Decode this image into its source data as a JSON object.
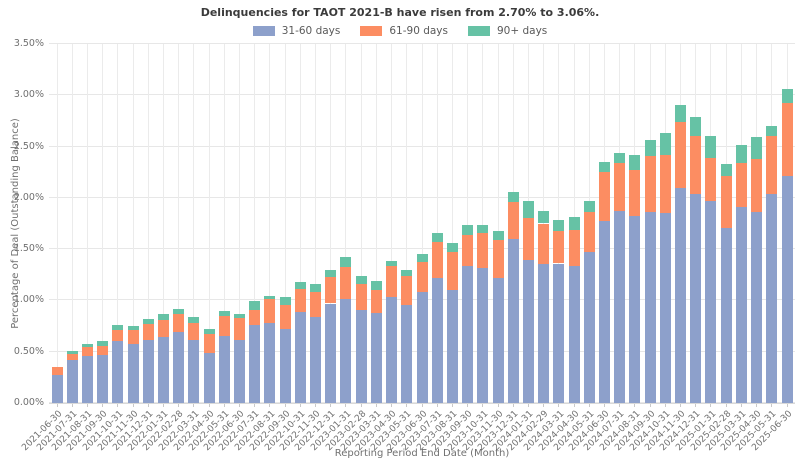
{
  "title": "Delinquencies for TAOT 2021-B have risen from 2.70% to 3.06%.",
  "legend": {
    "items": [
      {
        "label": "31-60 days",
        "color": "#8da0cb"
      },
      {
        "label": "61-90 days",
        "color": "#fc8d62"
      },
      {
        "label": "90+ days",
        "color": "#66c2a5"
      }
    ]
  },
  "axes": {
    "ylabel": "Percentage of Deal (Outstanding Balance)",
    "xlabel": "Reporting Period End Date (Month)",
    "yticks": [
      "0.00%",
      "0.50%",
      "1.00%",
      "1.50%",
      "2.00%",
      "2.50%",
      "3.00%",
      "3.50%"
    ]
  },
  "chart_data": {
    "type": "bar",
    "stacked": true,
    "title": "Delinquencies for TAOT 2021-B have risen from 2.70% to 3.06%.",
    "xlabel": "Reporting Period End Date (Month)",
    "ylabel": "Percentage of Deal (Outstanding Balance)",
    "ylim": [
      0,
      3.5
    ],
    "grid": true,
    "legend_position": "top",
    "unit": "percent",
    "categories": [
      "2021-06-30",
      "2021-07-31",
      "2021-08-31",
      "2021-09-30",
      "2021-10-31",
      "2021-11-30",
      "2021-12-31",
      "2022-01-31",
      "2022-02-28",
      "2022-03-31",
      "2022-04-30",
      "2022-05-31",
      "2022-06-30",
      "2022-07-31",
      "2022-08-31",
      "2022-09-30",
      "2022-10-31",
      "2022-11-30",
      "2022-12-31",
      "2023-01-31",
      "2023-02-28",
      "2023-03-31",
      "2023-04-30",
      "2023-05-31",
      "2023-06-30",
      "2023-07-31",
      "2023-08-31",
      "2023-09-30",
      "2023-10-31",
      "2023-11-30",
      "2023-12-31",
      "2024-01-31",
      "2024-02-29",
      "2024-03-31",
      "2024-04-30",
      "2024-05-31",
      "2024-06-30",
      "2024-07-31",
      "2024-08-31",
      "2024-09-30",
      "2024-10-31",
      "2024-11-30",
      "2024-12-31",
      "2025-01-31",
      "2025-02-28",
      "2025-03-31",
      "2025-04-30",
      "2025-05-31",
      "2025-06-30"
    ],
    "series": [
      {
        "name": "31-60 days",
        "color": "#8da0cb",
        "values": [
          0.27,
          0.42,
          0.46,
          0.47,
          0.6,
          0.58,
          0.61,
          0.64,
          0.69,
          0.61,
          0.49,
          0.65,
          0.61,
          0.76,
          0.78,
          0.72,
          0.89,
          0.84,
          0.97,
          1.01,
          0.91,
          0.88,
          1.03,
          0.96,
          1.08,
          1.22,
          1.1,
          1.34,
          1.32,
          1.22,
          1.6,
          1.39,
          1.36,
          1.36,
          1.34,
          1.47,
          1.77,
          1.87,
          1.82,
          1.86,
          1.85,
          2.1,
          2.04,
          1.97,
          1.71,
          1.91,
          1.86,
          2.04,
          2.21
        ]
      },
      {
        "name": "61-90 days",
        "color": "#fc8d62",
        "values": [
          0.08,
          0.06,
          0.09,
          0.09,
          0.11,
          0.13,
          0.16,
          0.17,
          0.18,
          0.17,
          0.18,
          0.2,
          0.22,
          0.15,
          0.23,
          0.24,
          0.22,
          0.24,
          0.26,
          0.32,
          0.25,
          0.22,
          0.31,
          0.28,
          0.29,
          0.35,
          0.37,
          0.3,
          0.34,
          0.37,
          0.36,
          0.41,
          0.39,
          0.32,
          0.35,
          0.39,
          0.48,
          0.47,
          0.45,
          0.55,
          0.57,
          0.64,
          0.56,
          0.42,
          0.5,
          0.43,
          0.52,
          0.56,
          0.71
        ]
      },
      {
        "name": "90+ days",
        "color": "#66c2a5",
        "values": [
          0.0,
          0.03,
          0.03,
          0.04,
          0.05,
          0.04,
          0.05,
          0.06,
          0.05,
          0.06,
          0.05,
          0.05,
          0.04,
          0.08,
          0.03,
          0.07,
          0.07,
          0.08,
          0.07,
          0.09,
          0.08,
          0.09,
          0.04,
          0.06,
          0.08,
          0.09,
          0.09,
          0.1,
          0.08,
          0.09,
          0.1,
          0.17,
          0.12,
          0.1,
          0.12,
          0.11,
          0.1,
          0.1,
          0.15,
          0.15,
          0.21,
          0.17,
          0.19,
          0.21,
          0.12,
          0.18,
          0.21,
          0.1,
          0.14
        ]
      }
    ],
    "delinquency_change": {
      "from": "2.70%",
      "to": "3.06%"
    }
  }
}
